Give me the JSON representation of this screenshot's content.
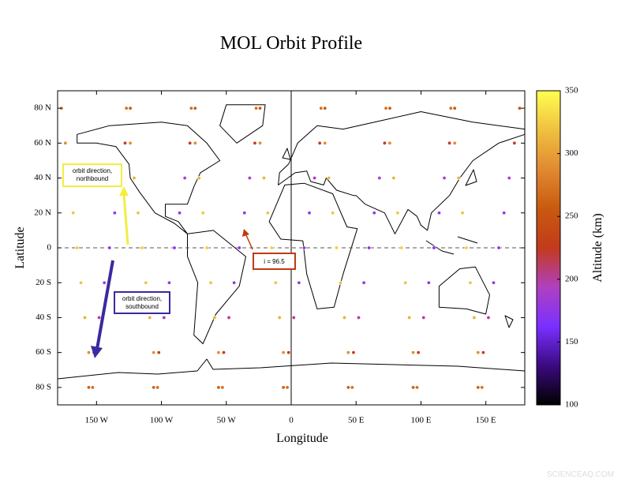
{
  "chart_data": {
    "type": "scatter",
    "title": "MOL Orbit Profile",
    "xlabel": "Longitude",
    "ylabel": "Latitude",
    "colorbar_label": "Altitude (km)",
    "xlim": [
      -180,
      180
    ],
    "ylim": [
      -90,
      90
    ],
    "xticks": [
      {
        "value": -150,
        "label": "150 W"
      },
      {
        "value": -100,
        "label": "100 W"
      },
      {
        "value": -50,
        "label": "50 W"
      },
      0,
      {
        "value": 50,
        "label": "50 E"
      },
      {
        "value": 100,
        "label": "100 E"
      },
      {
        "value": 150,
        "label": "150 E"
      }
    ],
    "yticks": [
      {
        "value": 80,
        "label": "80 N"
      },
      {
        "value": 60,
        "label": "60 N"
      },
      {
        "value": 40,
        "label": "40 N"
      },
      {
        "value": 20,
        "label": "20 N"
      },
      0,
      {
        "value": -20,
        "label": "20 S"
      },
      {
        "value": -40,
        "label": "40 S"
      },
      {
        "value": -60,
        "label": "60 S"
      },
      {
        "value": -80,
        "label": "80 S"
      }
    ],
    "clim": [
      100,
      350
    ],
    "cticks": [
      100,
      150,
      200,
      250,
      300,
      350
    ],
    "colormap": [
      "#000000",
      "#3b0a80",
      "#7a30ff",
      "#b040c0",
      "#c33a1c",
      "#c85a10",
      "#e08a30",
      "#f0c040",
      "#ffff50"
    ],
    "tracks": [
      {
        "x": [
          -153,
          -156,
          -159,
          -162,
          -165,
          -168,
          -171,
          -174,
          -177
        ],
        "y": [
          -80,
          -60,
          -40,
          -20,
          0,
          20,
          40,
          60,
          80
        ],
        "values": [
          270,
          290,
          310,
          320,
          325,
          320,
          310,
          290,
          270
        ]
      },
      {
        "x": [
          -103,
          -106,
          -109,
          -112,
          -115,
          -118,
          -121,
          -124,
          -127
        ],
        "y": [
          -80,
          -60,
          -40,
          -20,
          0,
          20,
          40,
          60,
          80
        ],
        "values": [
          270,
          290,
          310,
          320,
          325,
          320,
          310,
          290,
          270
        ]
      },
      {
        "x": [
          -53,
          -56,
          -59,
          -62,
          -65,
          -68,
          -71,
          -74,
          -77
        ],
        "y": [
          -80,
          -60,
          -40,
          -20,
          0,
          20,
          40,
          60,
          80
        ],
        "values": [
          270,
          290,
          310,
          320,
          325,
          320,
          310,
          290,
          270
        ]
      },
      {
        "x": [
          -3,
          -6,
          -9,
          -12,
          -15,
          -18,
          -21,
          -24,
          -27
        ],
        "y": [
          -80,
          -60,
          -40,
          -20,
          0,
          20,
          40,
          60,
          80
        ],
        "values": [
          270,
          290,
          310,
          320,
          325,
          320,
          310,
          290,
          270
        ]
      },
      {
        "x": [
          47,
          44,
          41,
          38,
          35,
          32,
          29,
          26,
          23
        ],
        "y": [
          -80,
          -60,
          -40,
          -20,
          0,
          20,
          40,
          60,
          80
        ],
        "values": [
          270,
          290,
          310,
          320,
          325,
          320,
          310,
          290,
          270
        ]
      },
      {
        "x": [
          97,
          94,
          91,
          88,
          85,
          82,
          79,
          76,
          73
        ],
        "y": [
          -80,
          -60,
          -40,
          -20,
          0,
          20,
          40,
          60,
          80
        ],
        "values": [
          270,
          290,
          310,
          320,
          325,
          320,
          310,
          290,
          270
        ]
      },
      {
        "x": [
          147,
          144,
          141,
          138,
          135,
          132,
          129,
          126,
          123
        ],
        "y": [
          -80,
          -60,
          -40,
          -20,
          0,
          20,
          40,
          60,
          80
        ],
        "values": [
          270,
          290,
          310,
          320,
          325,
          320,
          310,
          290,
          270
        ]
      },
      {
        "x": [
          -156,
          -152,
          -148,
          -144,
          -140,
          -136,
          -132,
          -128,
          -124
        ],
        "y": [
          -80,
          -60,
          -40,
          -20,
          0,
          20,
          40,
          60,
          80
        ],
        "values": [
          260,
          230,
          200,
          180,
          170,
          175,
          190,
          220,
          255
        ]
      },
      {
        "x": [
          -106,
          -102,
          -98,
          -94,
          -90,
          -86,
          -82,
          -78,
          -74
        ],
        "y": [
          -80,
          -60,
          -40,
          -20,
          0,
          20,
          40,
          60,
          80
        ],
        "values": [
          260,
          230,
          200,
          180,
          170,
          175,
          190,
          220,
          255
        ]
      },
      {
        "x": [
          -56,
          -52,
          -48,
          -44,
          -40,
          -36,
          -32,
          -28,
          -24
        ],
        "y": [
          -80,
          -60,
          -40,
          -20,
          0,
          20,
          40,
          60,
          80
        ],
        "values": [
          260,
          230,
          200,
          180,
          170,
          175,
          190,
          220,
          255
        ]
      },
      {
        "x": [
          -6,
          -2,
          2,
          6,
          10,
          14,
          18,
          22,
          26
        ],
        "y": [
          -80,
          -60,
          -40,
          -20,
          0,
          20,
          40,
          60,
          80
        ],
        "values": [
          260,
          230,
          200,
          180,
          170,
          175,
          190,
          220,
          255
        ]
      },
      {
        "x": [
          44,
          48,
          52,
          56,
          60,
          64,
          68,
          72,
          76
        ],
        "y": [
          -80,
          -60,
          -40,
          -20,
          0,
          20,
          40,
          60,
          80
        ],
        "values": [
          260,
          230,
          200,
          180,
          170,
          175,
          190,
          220,
          255
        ]
      },
      {
        "x": [
          94,
          98,
          102,
          106,
          110,
          114,
          118,
          122,
          126
        ],
        "y": [
          -80,
          -60,
          -40,
          -20,
          0,
          20,
          40,
          60,
          80
        ],
        "values": [
          260,
          230,
          200,
          180,
          170,
          175,
          190,
          220,
          255
        ]
      },
      {
        "x": [
          144,
          148,
          152,
          156,
          160,
          164,
          168,
          172,
          176
        ],
        "y": [
          -80,
          -60,
          -40,
          -20,
          0,
          20,
          40,
          60,
          80
        ],
        "values": [
          260,
          230,
          200,
          180,
          170,
          175,
          190,
          220,
          255
        ]
      }
    ],
    "annotations": [
      "orbit direction, northbound",
      "orbit direction, southbound",
      "i = 96.5"
    ],
    "watermark": "SCIENCEAQ.COM"
  }
}
